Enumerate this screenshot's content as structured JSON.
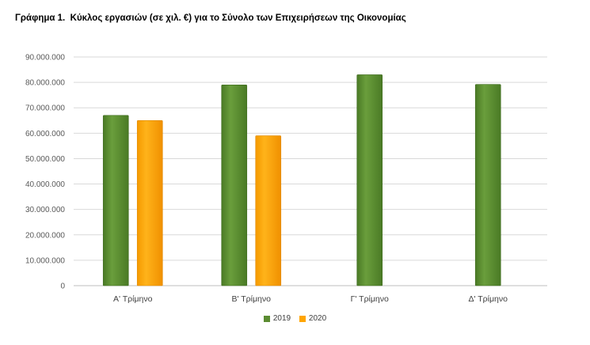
{
  "title": {
    "prefix": "Γράφημα 1.",
    "text": "Κύκλος εργασιών (σε χιλ. €) για το Σύνολο των Επιχειρήσεων της Οικονομίας"
  },
  "chart_data": {
    "type": "bar",
    "title": "Γράφημα 1. Κύκλος εργασιών (σε χιλ. €) για το Σύνολο των Επιχειρήσεων της Οικονομίας",
    "categories": [
      "Α' Τρίμηνο",
      "Β' Τρίμηνο",
      "Γ' Τρίμηνο",
      "Δ' Τρίμηνο"
    ],
    "series": [
      {
        "name": "2019",
        "values": [
          67000000,
          79000000,
          83000000,
          79200000
        ],
        "color": "#5b8c32"
      },
      {
        "name": "2020",
        "values": [
          65000000,
          59000000,
          null,
          null
        ],
        "color": "#ffa500"
      }
    ],
    "ylim": [
      0,
      90000000
    ],
    "yticks": [
      "0",
      "10.000.000",
      "20.000.000",
      "30.000.000",
      "40.000.000",
      "50.000.000",
      "60.000.000",
      "70.000.000",
      "80.000.000",
      "90.000.000"
    ],
    "grid": true,
    "legend": "bottom"
  }
}
